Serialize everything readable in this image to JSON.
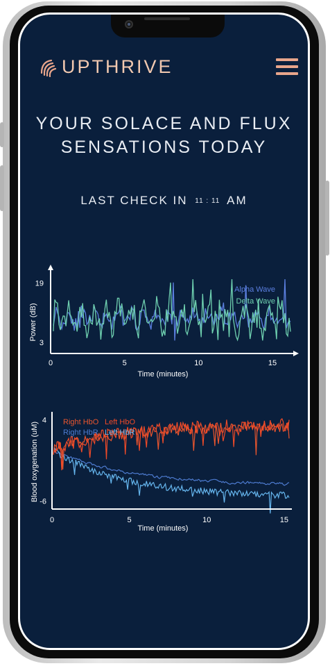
{
  "app": {
    "name": "UPTHRIVE",
    "colors": {
      "background": "#0a1f3c",
      "accent": "#e8a58b",
      "logo": "#f2c9b0"
    }
  },
  "header": {
    "menu_icon": "hamburger-menu-icon",
    "logo_icon": "fingerprint-logo-icon"
  },
  "main": {
    "headline_line1": "YOUR SOLACE AND FLUX",
    "headline_line2": "SENSATIONS TODAY",
    "checkin_label": "LAST CHECK IN",
    "checkin_time": "11 : 11",
    "checkin_ampm": "AM"
  },
  "chart_data": [
    {
      "type": "line",
      "xlabel": "Time (minutes)",
      "ylabel": "Power (dB)",
      "xticks": [
        "0",
        "5",
        "10",
        "15"
      ],
      "yticks": [
        "19",
        "3"
      ],
      "xlim": [
        0,
        16.5
      ],
      "ylim": [
        0,
        23
      ],
      "series": [
        {
          "name": "Alpha Wave",
          "color": "#5b7fe0"
        },
        {
          "name": "Delta Wave",
          "color": "#6fd1b0"
        }
      ]
    },
    {
      "type": "line",
      "xlabel": "Time (minutes)",
      "ylabel": "Blood oxygenation (uM)",
      "xticks": [
        "0",
        "5",
        "10",
        "15"
      ],
      "yticks": [
        "4",
        "-6"
      ],
      "xlim": [
        0,
        15.5
      ],
      "ylim": [
        -7,
        5
      ],
      "series": [
        {
          "name": "Right HbO",
          "color": "#e8552e"
        },
        {
          "name": "Left HbO",
          "color": "#ef4a28"
        },
        {
          "name": "Right HbR",
          "color": "#4d7bd0"
        },
        {
          "name": "Left HbR",
          "color": "#66b6ee"
        }
      ]
    }
  ]
}
